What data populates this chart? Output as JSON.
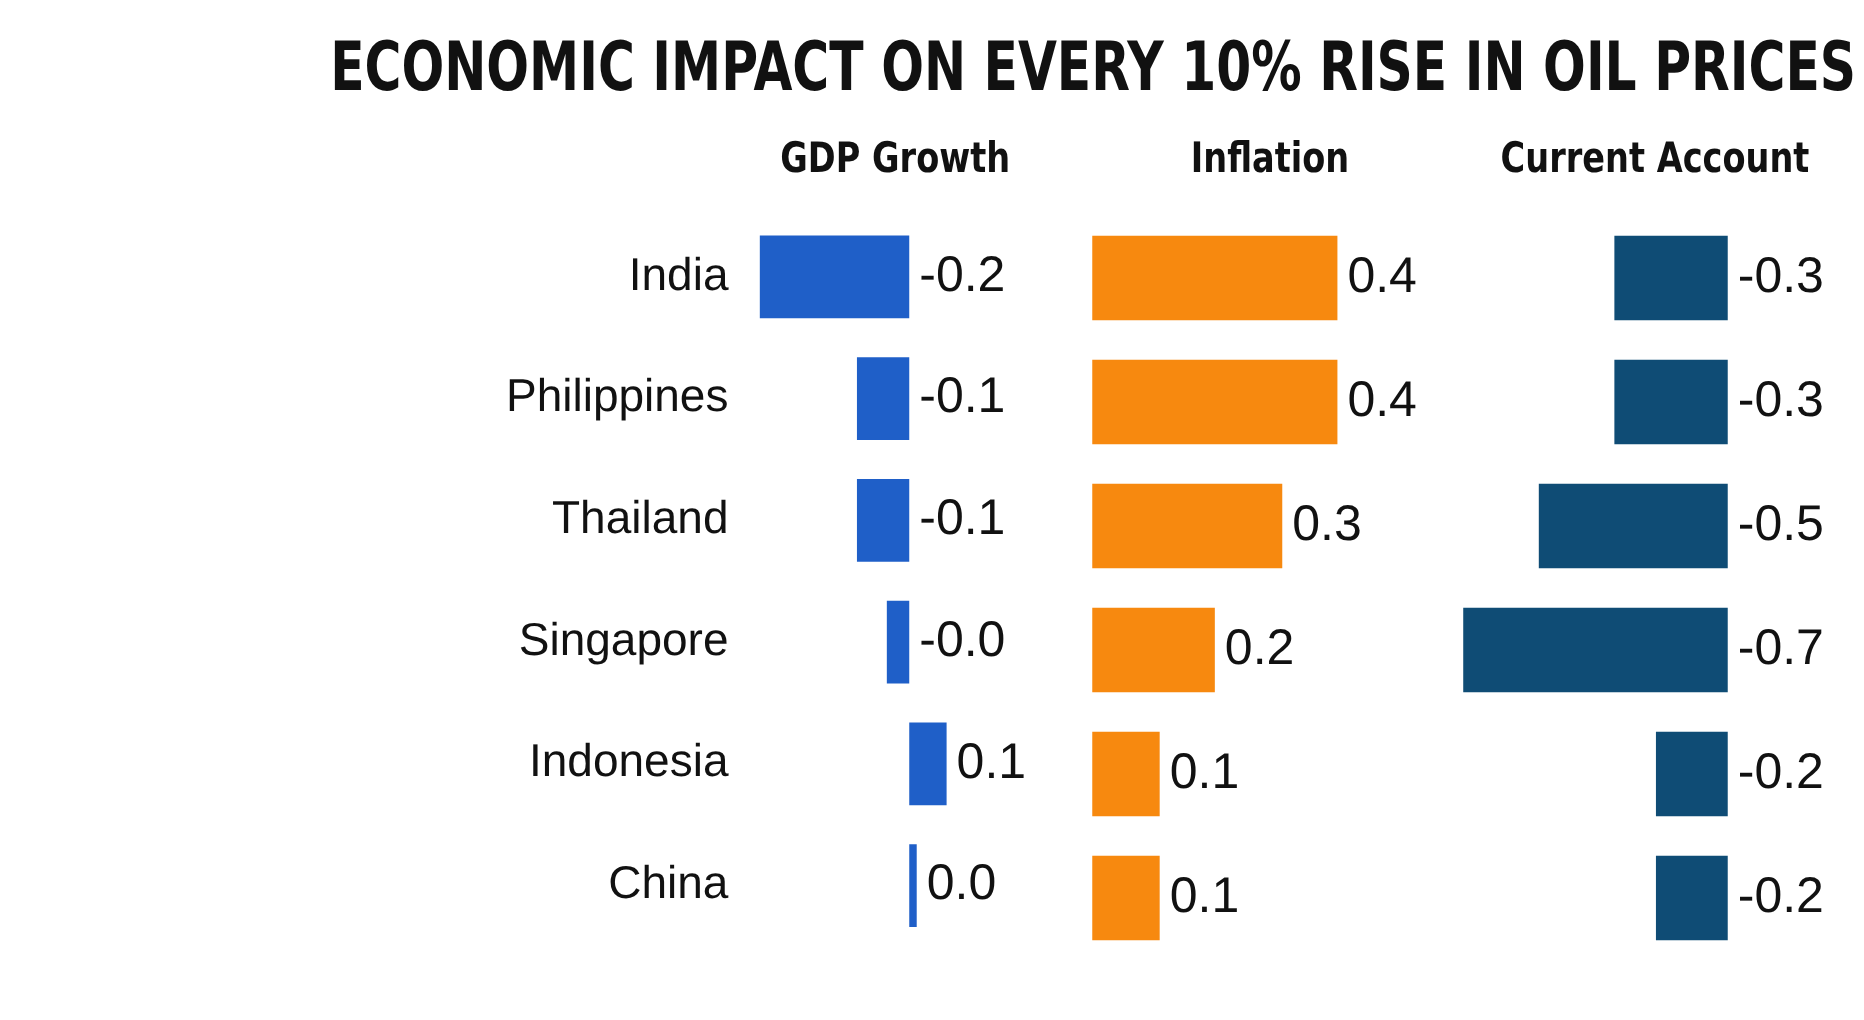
{
  "chart_data": [
    {
      "type": "bar",
      "orientation": "horizontal",
      "title": "GDP Growth",
      "annotations": [
        "ECONOMIC IMPACT ON EVERY 10% RISE IN OIL PRICES"
      ],
      "categories": [
        "India",
        "Philippines",
        "Thailand",
        "Singapore",
        "Indonesia",
        "China"
      ],
      "values": [
        -0.2,
        -0.07,
        -0.07,
        -0.03,
        0.05,
        0.01
      ],
      "value_labels": [
        "-0.2",
        "-0.1",
        "-0.1",
        "-0.0",
        "0.1",
        "0.0"
      ],
      "color": "#1f5fc8",
      "tick_labels": "y"
    },
    {
      "type": "bar",
      "orientation": "horizontal",
      "title": "Inflation",
      "categories": [
        "India",
        "Philippines",
        "Thailand",
        "Singapore",
        "Indonesia",
        "China"
      ],
      "values": [
        0.4,
        0.4,
        0.31,
        0.2,
        0.11,
        0.11
      ],
      "value_labels": [
        "0.4",
        "0.4",
        "0.3",
        "0.2",
        "0.1",
        "0.1"
      ],
      "color": "#f7890f",
      "tick_labels": false
    },
    {
      "type": "bar",
      "orientation": "horizontal",
      "title": "Current Account",
      "categories": [
        "India",
        "Philippines",
        "Thailand",
        "Singapore",
        "Indonesia",
        "China"
      ],
      "values": [
        -0.3,
        -0.3,
        -0.5,
        -0.7,
        -0.19,
        -0.19
      ],
      "value_labels": [
        "-0.3",
        "-0.3",
        "-0.5",
        "-0.7",
        "-0.2",
        "-0.2"
      ],
      "color": "#0f4c75",
      "tick_labels": false
    }
  ]
}
